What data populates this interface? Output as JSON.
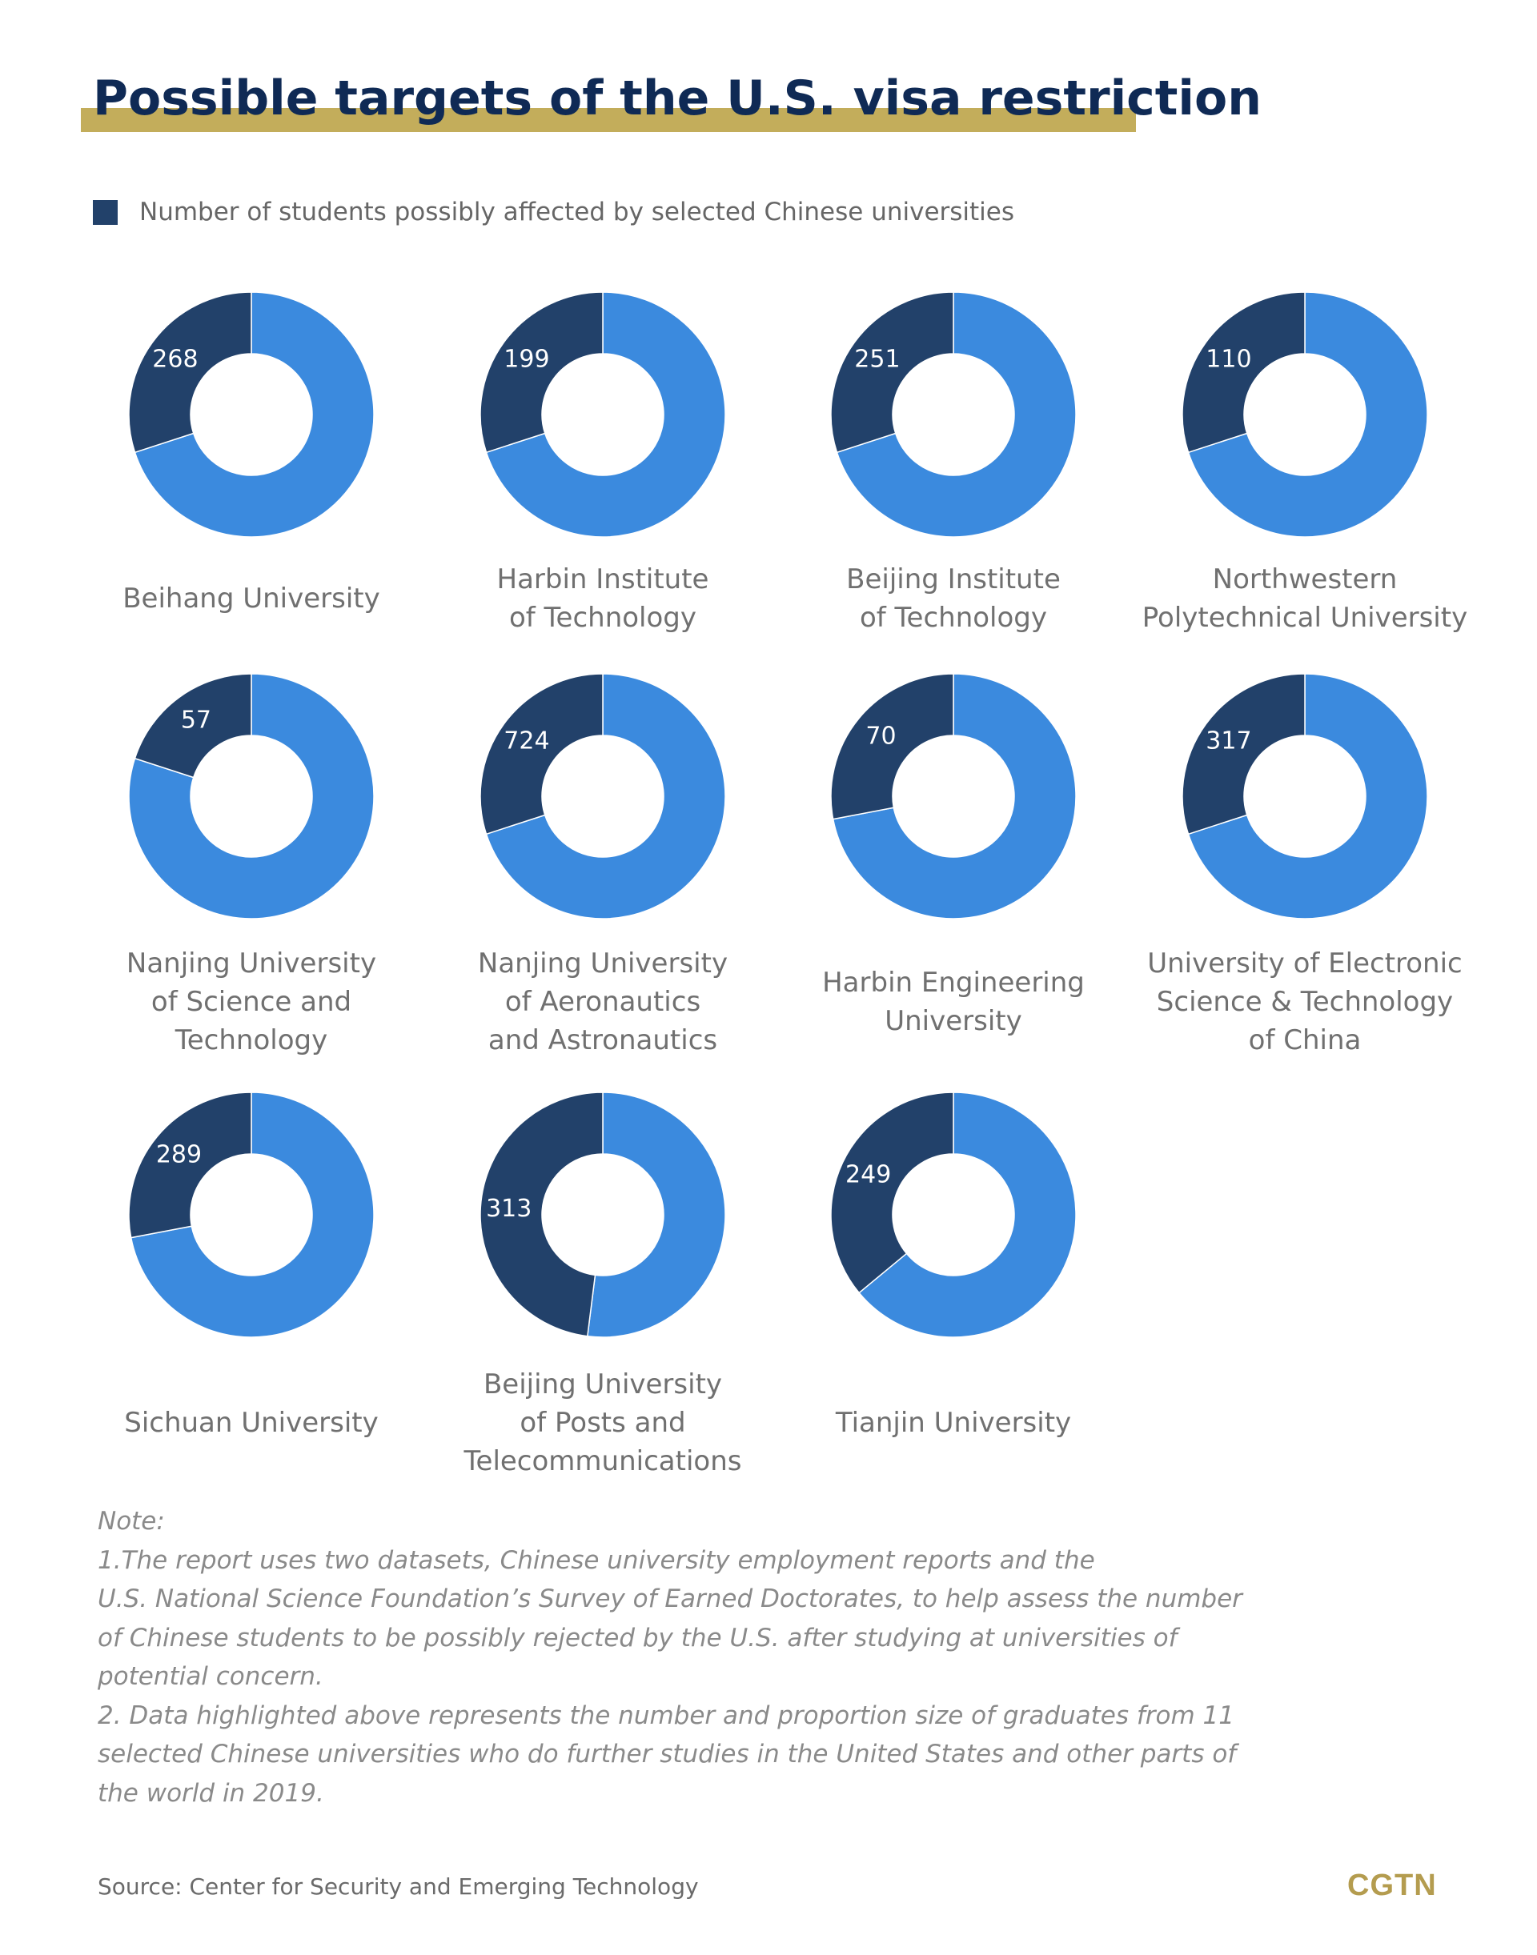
{
  "colors": {
    "title_bar": "#c3ad5b",
    "title_text": "#0f2a55",
    "dark_segment": "#22416a",
    "light_segment": "#3b8ade",
    "logo": "#b49c4f"
  },
  "header": {
    "title": "Possible targets of the U.S. visa restriction"
  },
  "legend": {
    "label": "Number of students possibly affected by selected Chinese universities"
  },
  "chart_data": {
    "type": "donut",
    "series_name": "Number of students possibly affected by selected Chinese universities",
    "items": [
      {
        "university": "Beihang University",
        "label_lines": [
          "Beihang University"
        ],
        "value": 268,
        "share": 0.3
      },
      {
        "university": "Harbin Institute of Technology",
        "label_lines": [
          "Harbin Institute",
          "of Technology"
        ],
        "value": 199,
        "share": 0.3
      },
      {
        "university": "Beijing Institute of Technology",
        "label_lines": [
          "Beijing Institute",
          "of Technology"
        ],
        "value": 251,
        "share": 0.3
      },
      {
        "university": "Northwestern Polytechnical University",
        "label_lines": [
          "Northwestern",
          "Polytechnical University"
        ],
        "value": 110,
        "share": 0.3
      },
      {
        "university": "Nanjing University of Science and Technology",
        "label_lines": [
          "Nanjing University",
          "of Science and",
          "Technology"
        ],
        "value": 57,
        "share": 0.2
      },
      {
        "university": "Nanjing University of Aeronautics and Astronautics",
        "label_lines": [
          "Nanjing University",
          "of Aeronautics",
          "and Astronautics"
        ],
        "value": 724,
        "share": 0.3
      },
      {
        "university": "Harbin Engineering University",
        "label_lines": [
          "Harbin Engineering",
          "University"
        ],
        "value": 70,
        "share": 0.28
      },
      {
        "university": "University of Electronic Science & Technology of China",
        "label_lines": [
          "University of Electronic",
          "Science & Technology",
          "of China"
        ],
        "value": 317,
        "share": 0.3
      },
      {
        "university": "Sichuan University",
        "label_lines": [
          "Sichuan University"
        ],
        "value": 289,
        "share": 0.28
      },
      {
        "university": "Beijing University of Posts and Telecommunications",
        "label_lines": [
          "Beijing University",
          "of Posts and",
          "Telecommunications"
        ],
        "value": 313,
        "share": 0.48
      },
      {
        "university": "Tianjin University",
        "label_lines": [
          "Tianjin University"
        ],
        "value": 249,
        "share": 0.36
      }
    ]
  },
  "notes": {
    "lines": [
      "Note:",
      "1.The report uses two datasets, Chinese university employment reports and the",
      "U.S. National Science Foundation’s Survey of Earned Doctorates, to help assess the number",
      "of Chinese students to be possibly rejected by the U.S. after studying at universities of",
      "potential concern.",
      "2.   Data highlighted above represents the number and proportion size of graduates from 11",
      "selected Chinese universities who do further studies in the United States and other parts of",
      "the world in 2019."
    ]
  },
  "source": {
    "text": "Source: Center for Security and Emerging Technology"
  },
  "brand": {
    "logo_text": "CGTN"
  }
}
